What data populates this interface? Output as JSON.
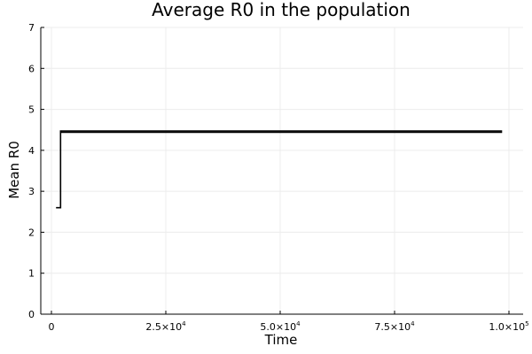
{
  "chart_data": {
    "type": "line",
    "title": "Average R0 in the population",
    "xlabel": "Time",
    "ylabel": "Mean R0",
    "xlim": [
      0,
      100000
    ],
    "ylim": [
      0,
      7
    ],
    "grid": true,
    "legend": "none",
    "x_ticks": [
      {
        "value": 0,
        "base": "0",
        "exp": ""
      },
      {
        "value": 25000,
        "base": "2.5×10",
        "exp": "4"
      },
      {
        "value": 50000,
        "base": "5.0×10",
        "exp": "4"
      },
      {
        "value": 75000,
        "base": "7.5×10",
        "exp": "4"
      },
      {
        "value": 100000,
        "base": "1.0×10",
        "exp": "5"
      }
    ],
    "y_ticks": [
      0,
      1,
      2,
      3,
      4,
      5,
      6,
      7
    ],
    "series": [
      {
        "color": "#000000",
        "x": [
          1000,
          2000,
          2000,
          98500
        ],
        "y": [
          2.6,
          2.6,
          4.47,
          4.47
        ]
      },
      {
        "color": "#000000",
        "x": [
          2000,
          98500
        ],
        "y": [
          4.44,
          4.44
        ]
      }
    ]
  }
}
